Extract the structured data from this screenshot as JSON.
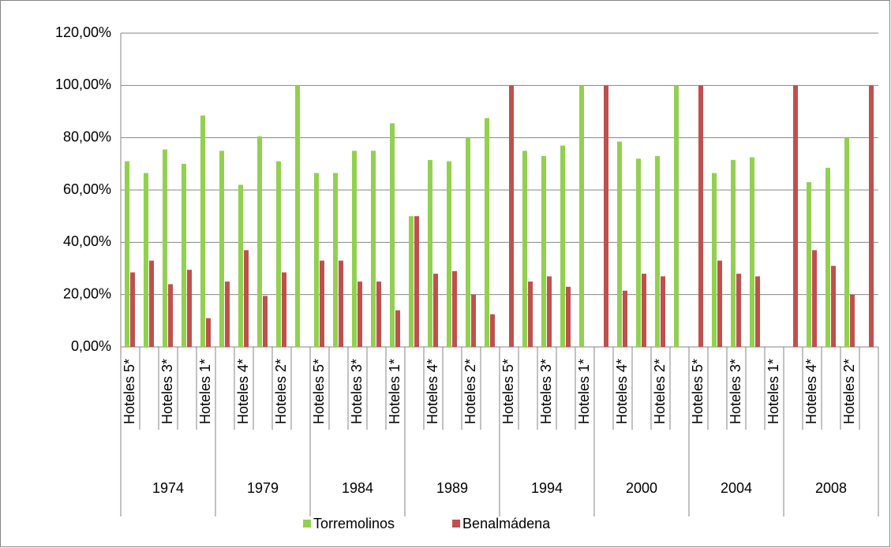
{
  "chart_data": {
    "type": "bar",
    "groups": [
      "1974",
      "1979",
      "1984",
      "1989",
      "1994",
      "2000",
      "2004",
      "2008"
    ],
    "categories": [
      "Hoteles 5*",
      null,
      "Hoteles 3*",
      null,
      "Hoteles 1*",
      null,
      "Hoteles 4*",
      null,
      "Hoteles 2*",
      null,
      "Hoteles 5*",
      null,
      "Hoteles 3*",
      null,
      "Hoteles 1*",
      null,
      "Hoteles 4*",
      null,
      "Hoteles 2*",
      null,
      "Hoteles 5*",
      null,
      "Hoteles 3*",
      null,
      "Hoteles 1*",
      null,
      "Hoteles 4*",
      null,
      "Hoteles 2*",
      null,
      "Hoteles 5*",
      null,
      "Hoteles 3*",
      null,
      "Hoteles 1*",
      null,
      "Hoteles 4*",
      null,
      "Hoteles 2*",
      null
    ],
    "series": [
      {
        "name": "Torremolinos",
        "color": "#92d050",
        "values": [
          71,
          66.5,
          75.5,
          70,
          88.5,
          75,
          62,
          80.5,
          71,
          100,
          66.5,
          66.5,
          75,
          75,
          85.5,
          50,
          71.5,
          71,
          80,
          87.5,
          0,
          75,
          73,
          77,
          100,
          0,
          78.5,
          72,
          73,
          100,
          0,
          66.5,
          71.5,
          72.5,
          0,
          0,
          63,
          68.5,
          80,
          0
        ]
      },
      {
        "name": "Benalmádena",
        "color": "#c0504d",
        "values": [
          28.5,
          33,
          24,
          29.5,
          11,
          25,
          37,
          19.5,
          28.5,
          0,
          33,
          33,
          25,
          25,
          14,
          50,
          28,
          29,
          20,
          12.5,
          100,
          25,
          27,
          23,
          0,
          100,
          21.5,
          28,
          27,
          0,
          100,
          33,
          28,
          27,
          0,
          100,
          37,
          31,
          20,
          100
        ]
      }
    ],
    "ylim": [
      0,
      120
    ],
    "yticks": [
      {
        "value": 0,
        "label": "0,00%"
      },
      {
        "value": 20,
        "label": "20,00%"
      },
      {
        "value": 40,
        "label": "40,00%"
      },
      {
        "value": 60,
        "label": "60,00%"
      },
      {
        "value": 80,
        "label": "80,00%"
      },
      {
        "value": 100,
        "label": "100,00%"
      },
      {
        "value": 120,
        "label": "120,00%"
      }
    ],
    "grid": true,
    "legend": "bottom"
  }
}
